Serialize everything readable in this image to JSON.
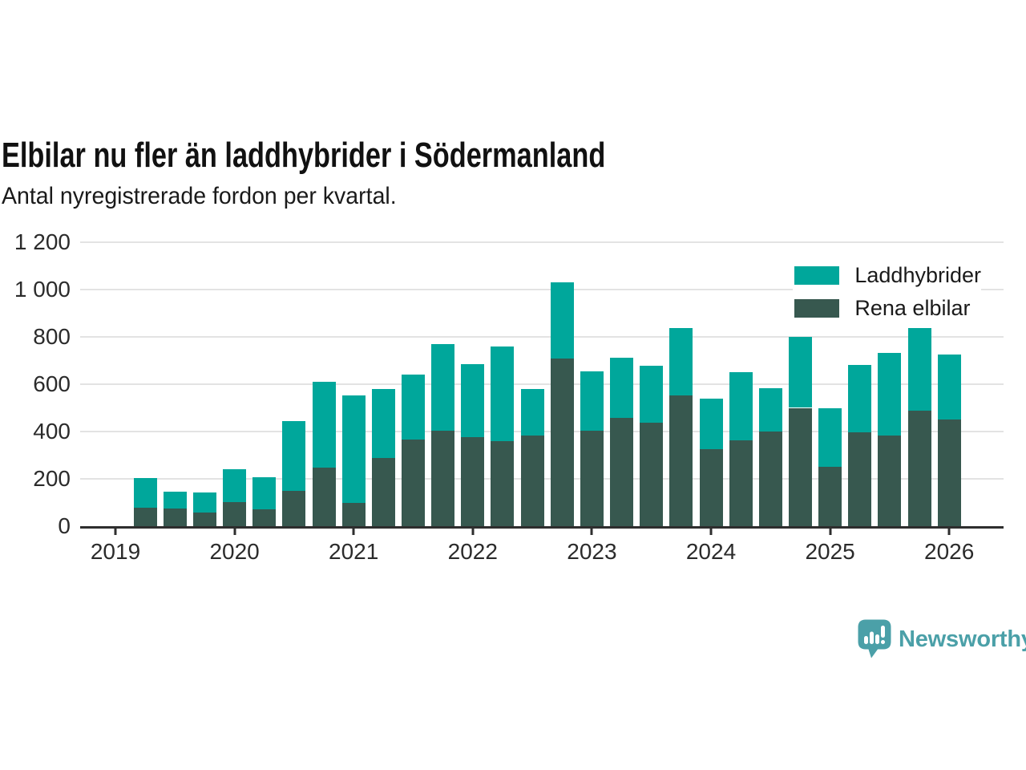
{
  "title": "Elbilar nu fler än laddhybrider i Södermanland",
  "subtitle": "Antal nyregistrerade fordon per kvartal.",
  "colors": {
    "laddhybrider": "#00a79b",
    "rena_elbilar": "#37584f",
    "brand_teal": "#4ba0a8",
    "grid": "#e3e3e3",
    "axis": "#2e2e2e"
  },
  "legend": [
    {
      "label": "Laddhybrider",
      "color": "#00a79b"
    },
    {
      "label": "Rena elbilar",
      "color": "#37584f"
    }
  ],
  "footer": {
    "brand": "Newsworthy"
  },
  "chart_data": {
    "type": "bar",
    "stacked": true,
    "title": "Elbilar nu fler än laddhybrider i Södermanland",
    "subtitle": "Antal nyregistrerade fordon per kvartal.",
    "xlabel": "",
    "ylabel": "",
    "grid": true,
    "legend_position": "top-right",
    "ylim": [
      0,
      1200
    ],
    "yticks": [
      0,
      200,
      400,
      600,
      800,
      1000,
      1200
    ],
    "yticklabels": [
      "0",
      "200",
      "400",
      "600",
      "800",
      "1 000",
      "1 200"
    ],
    "xticks": [
      2019,
      2020,
      2021,
      2022,
      2023,
      2024,
      2025,
      2026
    ],
    "categories": [
      "2019K2",
      "2019K3",
      "2019K4",
      "2020K1",
      "2020K2",
      "2020K3",
      "2020K4",
      "2021K1",
      "2021K2",
      "2021K3",
      "2021K4",
      "2022K1",
      "2022K2",
      "2022K3",
      "2022K4",
      "2023K1",
      "2023K2",
      "2023K3",
      "2023K4",
      "2024K1",
      "2024K2",
      "2024K3",
      "2024K4",
      "2025K1",
      "2025K2",
      "2025K3",
      "2025K4",
      "2026K1"
    ],
    "series": [
      {
        "name": "Rena elbilar",
        "color": "#37584f",
        "values": [
          78,
          76,
          57,
          101,
          71,
          148,
          246,
          99,
          288,
          365,
          404,
          376,
          359,
          382,
          709,
          404,
          458,
          438,
          553,
          325,
          362,
          401,
          500,
          252,
          397,
          384,
          487,
          450
        ]
      },
      {
        "name": "Laddhybrider",
        "color": "#00a79b",
        "values": [
          124,
          71,
          84,
          140,
          136,
          297,
          364,
          454,
          292,
          277,
          366,
          308,
          399,
          196,
          322,
          249,
          255,
          240,
          284,
          215,
          288,
          182,
          299,
          245,
          283,
          348,
          349,
          277
        ]
      }
    ]
  }
}
